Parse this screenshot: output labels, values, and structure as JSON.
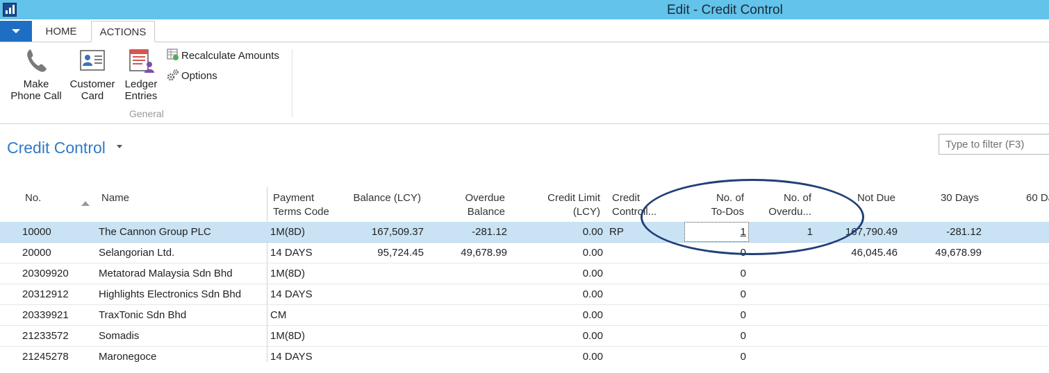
{
  "window": {
    "title": "Edit - Credit Control"
  },
  "ribbon": {
    "tabs": [
      {
        "label": "HOME"
      },
      {
        "label": "ACTIONS"
      }
    ],
    "buttons": {
      "make_phone_call": {
        "line1": "Make",
        "line2": "Phone Call",
        "icon": "phone-icon"
      },
      "customer_card": {
        "line1": "Customer",
        "line2": "Card",
        "icon": "customer-card-icon"
      },
      "ledger_entries": {
        "line1": "Ledger",
        "line2": "Entries",
        "icon": "ledger-entries-icon"
      },
      "recalculate_amounts": {
        "label": "Recalculate Amounts",
        "icon": "recalculate-icon"
      },
      "options": {
        "label": "Options",
        "icon": "gears-icon"
      }
    },
    "group_label": "General"
  },
  "page": {
    "title": "Credit Control",
    "filter_placeholder": "Type to filter (F3)"
  },
  "table": {
    "columns": [
      {
        "key": "no",
        "label": "No."
      },
      {
        "key": "name",
        "label": "Name"
      },
      {
        "key": "payment_terms",
        "line1": "Payment",
        "line2": "Terms Code"
      },
      {
        "key": "balance",
        "label": "Balance (LCY)"
      },
      {
        "key": "overdue",
        "line1": "Overdue",
        "line2": "Balance"
      },
      {
        "key": "credit_limit",
        "line1": "Credit Limit",
        "line2": "(LCY)"
      },
      {
        "key": "controller",
        "line1": "Credit",
        "line2": "Controll..."
      },
      {
        "key": "todos",
        "line1": "No. of",
        "line2": "To-Dos"
      },
      {
        "key": "overdue_count",
        "line1": "No. of",
        "line2": "Overdu..."
      },
      {
        "key": "not_due",
        "label": "Not Due"
      },
      {
        "key": "d30",
        "label": "30 Days"
      },
      {
        "key": "d60",
        "label": "60 Da"
      }
    ],
    "rows": [
      {
        "no": "10000",
        "name": "The Cannon Group PLC",
        "payment_terms": "1M(8D)",
        "balance": "167,509.37",
        "overdue": "-281.12",
        "credit_limit": "0.00",
        "controller": "RP",
        "todos": "1",
        "overdue_count": "1",
        "not_due": "167,790.49",
        "d30": "-281.12"
      },
      {
        "no": "20000",
        "name": "Selangorian Ltd.",
        "payment_terms": "14 DAYS",
        "balance": "95,724.45",
        "overdue": "49,678.99",
        "credit_limit": "0.00",
        "controller": "",
        "todos": "0",
        "overdue_count": "",
        "not_due": "46,045.46",
        "d30": "49,678.99"
      },
      {
        "no": "20309920",
        "name": "Metatorad Malaysia Sdn Bhd",
        "payment_terms": "1M(8D)",
        "balance": "",
        "overdue": "",
        "credit_limit": "0.00",
        "controller": "",
        "todos": "0",
        "overdue_count": "",
        "not_due": "",
        "d30": ""
      },
      {
        "no": "20312912",
        "name": "Highlights Electronics Sdn Bhd",
        "payment_terms": "14 DAYS",
        "balance": "",
        "overdue": "",
        "credit_limit": "0.00",
        "controller": "",
        "todos": "0",
        "overdue_count": "",
        "not_due": "",
        "d30": ""
      },
      {
        "no": "20339921",
        "name": "TraxTonic Sdn Bhd",
        "payment_terms": "CM",
        "balance": "",
        "overdue": "",
        "credit_limit": "0.00",
        "controller": "",
        "todos": "0",
        "overdue_count": "",
        "not_due": "",
        "d30": ""
      },
      {
        "no": "21233572",
        "name": "Somadis",
        "payment_terms": "1M(8D)",
        "balance": "",
        "overdue": "",
        "credit_limit": "0.00",
        "controller": "",
        "todos": "0",
        "overdue_count": "",
        "not_due": "",
        "d30": ""
      },
      {
        "no": "21245278",
        "name": "Maronegoce",
        "payment_terms": "14 DAYS",
        "balance": "",
        "overdue": "",
        "credit_limit": "0.00",
        "controller": "",
        "todos": "0",
        "overdue_count": "",
        "not_due": "",
        "d30": ""
      }
    ]
  },
  "colors": {
    "titlebar": "#63c3ea",
    "accent": "#2f7ac8",
    "file_tab": "#1e6fc4",
    "selected_row": "#c9e3f4",
    "annotation": "#1f3f79"
  }
}
